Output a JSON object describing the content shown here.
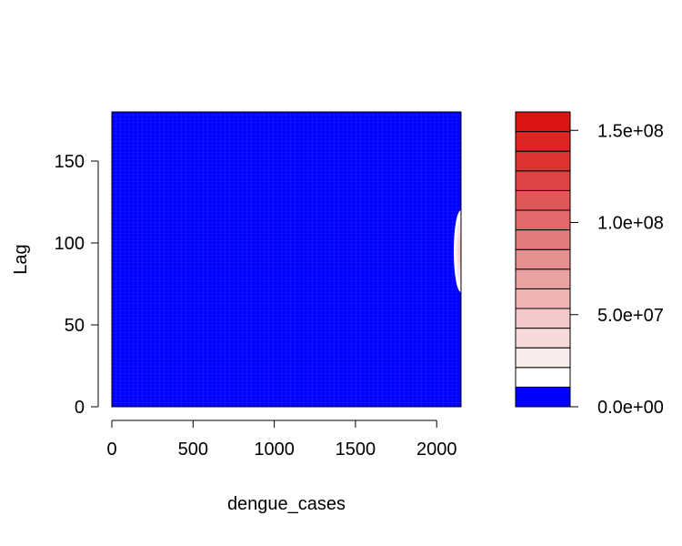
{
  "chart_data": {
    "type": "heatmap",
    "title": "",
    "xlabel": "dengue_cases",
    "ylabel": "Lag",
    "xlim": [
      0,
      2150
    ],
    "ylim": [
      0,
      180
    ],
    "x_ticks": [
      "0",
      "500",
      "1000",
      "1500",
      "2000"
    ],
    "y_ticks": [
      "0",
      "50",
      "100",
      "150"
    ],
    "grid": false,
    "fill_color": "#0000ff",
    "hotspot": {
      "x_center": 2150,
      "y_center": 95,
      "x_radius": 45,
      "y_radius": 25,
      "peak_value": 160000000.0,
      "note_color_edge": "#ffffff",
      "note_color_peak": "#dc1414"
    },
    "legend": {
      "placement": "right",
      "tick_labels": [
        "0.0e+00",
        "5.0e+07",
        "1.0e+08",
        "1.5e+08"
      ],
      "tick_values": [
        0,
        50000000.0,
        100000000.0,
        150000000.0
      ],
      "range": [
        0,
        160000000.0
      ],
      "colors": [
        "#0000ff",
        "#ffffff",
        "#fbecec",
        "#f6dada",
        "#f2c8c8",
        "#eeb4b4",
        "#eaa2a2",
        "#e68f8f",
        "#e27c7c",
        "#e06a6a",
        "#de5858",
        "#dd4545",
        "#dc3333",
        "#dc2525",
        "#dc1414"
      ]
    }
  }
}
